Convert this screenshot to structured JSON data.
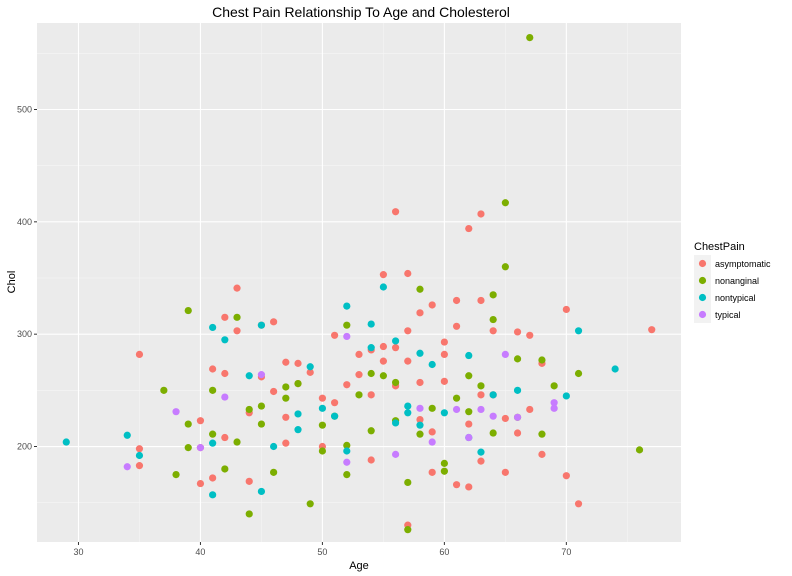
{
  "chart_data": {
    "type": "scatter",
    "title": "Chest Pain Relationship To Age and Cholesterol",
    "xlabel": "Age",
    "ylabel": "Chol",
    "xlim": [
      26.6,
      79.4
    ],
    "ylim": [
      115.0,
      577.0
    ],
    "x_ticks": [
      30,
      40,
      50,
      60,
      70
    ],
    "y_ticks": [
      200,
      300,
      400,
      500
    ],
    "x_tick_labels": [
      "30",
      "40",
      "50",
      "60",
      "70"
    ],
    "y_tick_labels": [
      "200",
      "300",
      "400",
      "500"
    ],
    "grid": true,
    "legend": {
      "title": "ChestPain",
      "position": "right"
    },
    "series": [
      {
        "name": "asymptomatic",
        "color": "#F8766D",
        "points": [
          [
            35,
            282
          ],
          [
            35,
            198
          ],
          [
            35,
            183
          ],
          [
            40,
            223
          ],
          [
            40,
            167
          ],
          [
            41,
            172
          ],
          [
            42,
            315
          ],
          [
            42,
            208
          ],
          [
            43,
            341
          ],
          [
            43,
            303
          ],
          [
            44,
            169
          ],
          [
            45,
            308
          ],
          [
            46,
            311
          ],
          [
            46,
            249
          ],
          [
            47,
            275
          ],
          [
            47,
            203
          ],
          [
            48,
            274
          ],
          [
            48,
            256
          ],
          [
            50,
            243
          ],
          [
            51,
            299
          ],
          [
            52,
            255
          ],
          [
            53,
            264
          ],
          [
            54,
            286
          ],
          [
            54,
            188
          ],
          [
            55,
            353
          ],
          [
            55,
            289
          ],
          [
            56,
            409
          ],
          [
            56,
            288
          ],
          [
            57,
            354
          ],
          [
            57,
            303
          ],
          [
            58,
            319
          ],
          [
            58,
            224
          ],
          [
            59,
            326
          ],
          [
            60,
            258
          ],
          [
            61,
            330
          ],
          [
            62,
            394
          ],
          [
            62,
            220
          ],
          [
            63,
            407
          ],
          [
            63,
            330
          ],
          [
            64,
            303
          ],
          [
            65,
            225
          ],
          [
            66,
            302
          ],
          [
            67,
            299
          ],
          [
            68,
            193
          ],
          [
            70,
            322
          ],
          [
            70,
            174
          ],
          [
            71,
            149
          ],
          [
            77,
            304
          ],
          [
            40,
            199
          ],
          [
            41,
            269
          ],
          [
            42,
            265
          ],
          [
            44,
            230
          ],
          [
            45,
            262
          ],
          [
            47,
            226
          ],
          [
            49,
            266
          ],
          [
            50,
            200
          ],
          [
            51,
            239
          ],
          [
            53,
            282
          ],
          [
            54,
            246
          ],
          [
            55,
            276
          ],
          [
            56,
            254
          ],
          [
            57,
            276
          ],
          [
            57,
            130
          ],
          [
            58,
            257
          ],
          [
            59,
            213
          ],
          [
            60,
            282
          ],
          [
            61,
            166
          ],
          [
            62,
            164
          ],
          [
            63,
            246
          ],
          [
            64,
            246
          ],
          [
            65,
            177
          ],
          [
            66,
            212
          ],
          [
            67,
            233
          ],
          [
            68,
            274
          ],
          [
            59,
            177
          ],
          [
            60,
            293
          ],
          [
            61,
            307
          ],
          [
            63,
            187
          ]
        ]
      },
      {
        "name": "nonanginal",
        "color": "#7CAE00",
        "points": [
          [
            37,
            250
          ],
          [
            38,
            175
          ],
          [
            39,
            321
          ],
          [
            39,
            220
          ],
          [
            41,
            250
          ],
          [
            42,
            180
          ],
          [
            43,
            315
          ],
          [
            44,
            140
          ],
          [
            44,
            233
          ],
          [
            45,
            236
          ],
          [
            46,
            177
          ],
          [
            47,
            243
          ],
          [
            48,
            256
          ],
          [
            49,
            149
          ],
          [
            50,
            219
          ],
          [
            51,
            227
          ],
          [
            52,
            308
          ],
          [
            52,
            175
          ],
          [
            53,
            246
          ],
          [
            54,
            265
          ],
          [
            55,
            263
          ],
          [
            56,
            257
          ],
          [
            57,
            126
          ],
          [
            57,
            168
          ],
          [
            58,
            340
          ],
          [
            59,
            234
          ],
          [
            60,
            185
          ],
          [
            61,
            243
          ],
          [
            62,
            231
          ],
          [
            63,
            254
          ],
          [
            64,
            335
          ],
          [
            64,
            313
          ],
          [
            65,
            417
          ],
          [
            65,
            360
          ],
          [
            66,
            278
          ],
          [
            67,
            564
          ],
          [
            68,
            277
          ],
          [
            69,
            254
          ],
          [
            71,
            265
          ],
          [
            76,
            197
          ],
          [
            39,
            199
          ],
          [
            41,
            211
          ],
          [
            43,
            204
          ],
          [
            45,
            220
          ],
          [
            47,
            253
          ],
          [
            50,
            196
          ],
          [
            52,
            201
          ],
          [
            54,
            214
          ],
          [
            56,
            223
          ],
          [
            58,
            211
          ],
          [
            60,
            178
          ],
          [
            62,
            263
          ],
          [
            64,
            212
          ],
          [
            66,
            226
          ],
          [
            68,
            211
          ]
        ]
      },
      {
        "name": "nontypical",
        "color": "#00BFC4",
        "points": [
          [
            29,
            204
          ],
          [
            34,
            210
          ],
          [
            35,
            192
          ],
          [
            41,
            306
          ],
          [
            41,
            157
          ],
          [
            41,
            203
          ],
          [
            42,
            295
          ],
          [
            44,
            263
          ],
          [
            45,
            308
          ],
          [
            46,
            200
          ],
          [
            48,
            229
          ],
          [
            49,
            271
          ],
          [
            51,
            227
          ],
          [
            52,
            325
          ],
          [
            54,
            309
          ],
          [
            55,
            342
          ],
          [
            56,
            294
          ],
          [
            57,
            236
          ],
          [
            58,
            283
          ],
          [
            59,
            273
          ],
          [
            62,
            208
          ],
          [
            64,
            246
          ],
          [
            71,
            303
          ],
          [
            74,
            269
          ],
          [
            70,
            245
          ],
          [
            45,
            160
          ],
          [
            48,
            215
          ],
          [
            50,
            234
          ],
          [
            52,
            196
          ],
          [
            54,
            288
          ],
          [
            56,
            221
          ],
          [
            57,
            230
          ],
          [
            58,
            219
          ],
          [
            60,
            230
          ],
          [
            62,
            281
          ],
          [
            63,
            195
          ],
          [
            66,
            250
          ]
        ]
      },
      {
        "name": "typical",
        "color": "#C77CFF",
        "points": [
          [
            34,
            182
          ],
          [
            38,
            231
          ],
          [
            40,
            199
          ],
          [
            42,
            244
          ],
          [
            45,
            264
          ],
          [
            52,
            186
          ],
          [
            52,
            298
          ],
          [
            56,
            193
          ],
          [
            58,
            234
          ],
          [
            59,
            204
          ],
          [
            62,
            208
          ],
          [
            64,
            227
          ],
          [
            65,
            282
          ],
          [
            66,
            226
          ],
          [
            69,
            239
          ],
          [
            69,
            234
          ],
          [
            61,
            233
          ],
          [
            63,
            233
          ]
        ]
      }
    ]
  }
}
